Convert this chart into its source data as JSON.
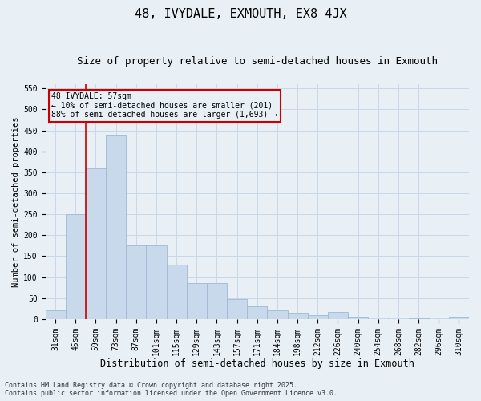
{
  "title1": "48, IVYDALE, EXMOUTH, EX8 4JX",
  "title2": "Size of property relative to semi-detached houses in Exmouth",
  "xlabel": "Distribution of semi-detached houses by size in Exmouth",
  "ylabel": "Number of semi-detached properties",
  "categories": [
    "31sqm",
    "45sqm",
    "59sqm",
    "73sqm",
    "87sqm",
    "101sqm",
    "115sqm",
    "129sqm",
    "143sqm",
    "157sqm",
    "171sqm",
    "184sqm",
    "198sqm",
    "212sqm",
    "226sqm",
    "240sqm",
    "254sqm",
    "268sqm",
    "282sqm",
    "296sqm",
    "310sqm"
  ],
  "values": [
    20,
    250,
    360,
    440,
    175,
    175,
    130,
    85,
    85,
    48,
    30,
    20,
    15,
    10,
    17,
    5,
    4,
    3,
    1,
    3,
    5
  ],
  "bar_color": "#c8d9ec",
  "bar_edge_color": "#9fb8d4",
  "grid_color": "#c8d8e8",
  "background_color": "#e8eff5",
  "vline_x": 1.5,
  "vline_color": "#cc0000",
  "annotation_text": "48 IVYDALE: 57sqm\n← 10% of semi-detached houses are smaller (201)\n88% of semi-detached houses are larger (1,693) →",
  "annotation_box_color": "#cc0000",
  "ylim": [
    0,
    560
  ],
  "yticks": [
    0,
    50,
    100,
    150,
    200,
    250,
    300,
    350,
    400,
    450,
    500,
    550
  ],
  "footnote": "Contains HM Land Registry data © Crown copyright and database right 2025.\nContains public sector information licensed under the Open Government Licence v3.0.",
  "title1_fontsize": 11,
  "title2_fontsize": 9,
  "xlabel_fontsize": 8.5,
  "ylabel_fontsize": 7.5,
  "tick_fontsize": 7,
  "footnote_fontsize": 6,
  "ann_fontsize": 7
}
